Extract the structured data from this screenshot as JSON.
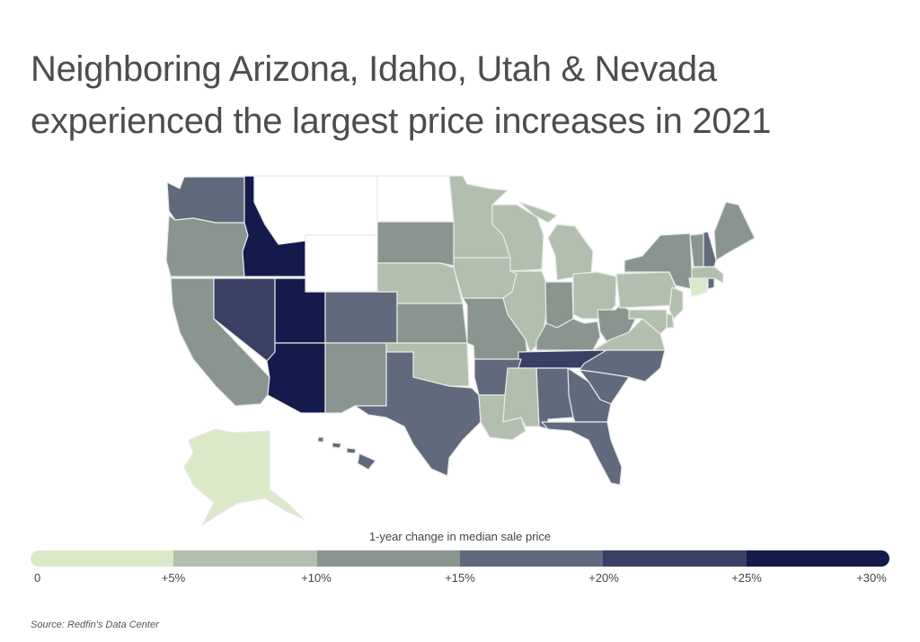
{
  "title": "Neighboring Arizona, Idaho, Utah & Nevada experienced the largest price increases in 2021",
  "legend": {
    "title": "1-year change in median sale price",
    "ticks": [
      "0",
      "+5%",
      "+10%",
      "+15%",
      "+20%",
      "+25%",
      "+30%"
    ],
    "colors": [
      "#dce9c9",
      "#b3bfae",
      "#8a9590",
      "#606a7c",
      "#3a4064",
      "#141a4c"
    ],
    "no_data_color": "#ffffff"
  },
  "source": "Source:  Redfin's Data Center",
  "map_data": {
    "bins": [
      "0 to +5%",
      "+5% to +10%",
      "+10% to +15%",
      "+15% to +20%",
      "+20% to +25%",
      "+25% to +30%"
    ],
    "state_bin": {
      "WA": 3,
      "OR": 2,
      "CA": 2,
      "NV": 4,
      "ID": 5,
      "MT": null,
      "WY": null,
      "UT": 5,
      "AZ": 5,
      "CO": 3,
      "NM": 2,
      "ND": null,
      "SD": 2,
      "NE": 1,
      "KS": 2,
      "OK": 1,
      "TX": 3,
      "MN": 1,
      "IA": 1,
      "MO": 2,
      "WI": 1,
      "IL": 1,
      "IN": 2,
      "MI": 1,
      "OH": 1,
      "KY": 2,
      "TN": 4,
      "WV": 2,
      "VA": 1,
      "PA": 1,
      "NY": 2,
      "VT": 2,
      "NH": 3,
      "ME": 2,
      "MA": 1,
      "CT": 0,
      "RI": 3,
      "NJ": 1,
      "DE": 1,
      "MD": 1,
      "NC": 3,
      "SC": 3,
      "GA": 3,
      "AL": 3,
      "MS": 1,
      "AR": 3,
      "LA": 1,
      "FL": 3,
      "AK": 0,
      "HI": 3
    }
  }
}
